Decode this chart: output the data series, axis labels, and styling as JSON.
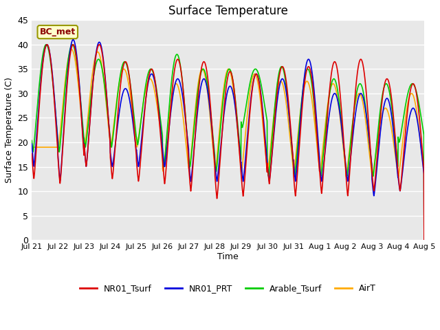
{
  "title": "Surface Temperature",
  "xlabel": "Time",
  "ylabel": "Surface Temperature (C)",
  "ylim": [
    0,
    45
  ],
  "background_color": "#ffffff",
  "plot_bg_color": "#e8e8e8",
  "annotation_text": "BC_met",
  "series": {
    "NR01_Tsurf": {
      "color": "#dd0000",
      "lw": 1.2
    },
    "NR01_PRT": {
      "color": "#0000dd",
      "lw": 1.2
    },
    "Arable_Tsurf": {
      "color": "#00cc00",
      "lw": 1.2
    },
    "AirT": {
      "color": "#ffaa00",
      "lw": 1.2
    }
  },
  "xtick_labels": [
    "Jul 21",
    "Jul 22",
    "Jul 23",
    "Jul 24",
    "Jul 25",
    "Jul 26",
    "Jul 27",
    "Jul 28",
    "Jul 29",
    "Jul 30",
    "Jul 31",
    "Aug 1",
    "Aug 2",
    "Aug 3",
    "Aug 4",
    "Aug 5"
  ],
  "ytick_values": [
    0,
    5,
    10,
    15,
    20,
    25,
    30,
    35,
    40,
    45
  ],
  "num_days": 15,
  "peaks_nr01": [
    40.0,
    40.0,
    40.0,
    36.5,
    35.0,
    37.0,
    36.5,
    34.5,
    34.0,
    35.5,
    35.5,
    36.5,
    37.0,
    33.0,
    32.0
  ],
  "troughs_nr01": [
    12.5,
    11.5,
    15.0,
    12.5,
    12.0,
    11.5,
    10.0,
    8.5,
    9.0,
    11.5,
    9.0,
    9.5,
    9.0,
    10.0,
    10.0
  ],
  "peaks_prt": [
    40.0,
    41.0,
    40.5,
    31.0,
    34.0,
    33.0,
    33.0,
    31.5,
    34.0,
    33.0,
    37.0,
    30.0,
    30.0,
    29.0,
    27.0
  ],
  "troughs_prt": [
    15.0,
    12.0,
    15.0,
    15.0,
    15.0,
    15.0,
    12.0,
    12.0,
    12.0,
    12.0,
    12.0,
    12.0,
    12.0,
    9.0,
    10.0
  ],
  "peaks_arable": [
    40.0,
    40.0,
    37.0,
    36.5,
    35.0,
    38.0,
    35.0,
    35.0,
    35.0,
    35.5,
    35.0,
    33.0,
    32.0,
    32.0,
    32.0
  ],
  "troughs_arable": [
    18.0,
    18.0,
    19.0,
    19.0,
    19.5,
    15.0,
    15.0,
    14.0,
    23.0,
    13.0,
    13.0,
    13.0,
    13.0,
    13.0,
    20.0
  ],
  "peaks_air": [
    19.0,
    39.0,
    38.5,
    35.0,
    33.0,
    32.0,
    35.0,
    35.0,
    34.0,
    32.5,
    32.5,
    32.0,
    30.0,
    27.0,
    30.0
  ],
  "troughs_air": [
    19.0,
    19.0,
    19.0,
    19.0,
    19.0,
    14.0,
    14.0,
    14.0,
    14.0,
    14.0,
    14.0,
    14.0,
    13.0,
    13.0,
    13.0
  ]
}
